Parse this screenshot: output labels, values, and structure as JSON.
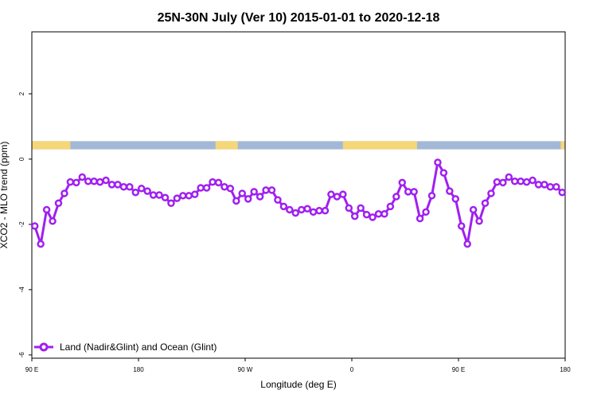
{
  "chart_data": {
    "type": "line",
    "title": "25N-30N July (Ver 10)   2015-01-01 to 2020-12-18",
    "xlabel": "Longitude (deg E)",
    "ylabel": "XCO2 - MLO trend (ppm)",
    "xlim": [
      90,
      450
    ],
    "ylim": [
      -6.1,
      3.9
    ],
    "x_ticks": [
      {
        "value": 90,
        "label": "90 E"
      },
      {
        "value": 162,
        "label": "180"
      },
      {
        "value": 234,
        "label": "90 W"
      },
      {
        "value": 306,
        "label": "0"
      },
      {
        "value": 378,
        "label": "90 E"
      },
      {
        "value": 450,
        "label": "180"
      }
    ],
    "y_ticks": [
      {
        "value": 2,
        "label": "2"
      },
      {
        "value": 0,
        "label": "0"
      },
      {
        "value": -2,
        "label": "-2"
      },
      {
        "value": -4,
        "label": "-4"
      },
      {
        "value": -6,
        "label": "-6"
      }
    ],
    "grid": false,
    "legend": {
      "position": "bottom-left"
    },
    "surface_strip": {
      "y_range": [
        0.3,
        0.55
      ],
      "ocean_color": "#a3b8d6",
      "land_color": "#f5d77a",
      "land_segments": [
        [
          90,
          116
        ],
        [
          214,
          229
        ],
        [
          300,
          350
        ],
        [
          447,
          450
        ]
      ]
    },
    "series": [
      {
        "name": "Land (Nadir&Glint) and Ocean (Glint)",
        "color": "#a020f0",
        "x": [
          92,
          96,
          100,
          104,
          108,
          112,
          116,
          120,
          124,
          128,
          132,
          136,
          140,
          144,
          148,
          152,
          156,
          160,
          164,
          168,
          172,
          176,
          180,
          184,
          188,
          192,
          196,
          200,
          204,
          208,
          212,
          216,
          220,
          224,
          228,
          232,
          236,
          240,
          244,
          248,
          252,
          256,
          260,
          264,
          268,
          272,
          276,
          280,
          284,
          288,
          292,
          296,
          300,
          304,
          308,
          312,
          316,
          320,
          324,
          328,
          332,
          336,
          340,
          344,
          348,
          352,
          356,
          360,
          364,
          368,
          372,
          376,
          380,
          384,
          388,
          392,
          396,
          400,
          404,
          408,
          412,
          416,
          420,
          424,
          428,
          432,
          436,
          440,
          444,
          448
        ],
        "y": [
          -2.05,
          -2.6,
          -1.55,
          -1.9,
          -1.35,
          -1.05,
          -0.7,
          -0.72,
          -0.55,
          -0.68,
          -0.68,
          -0.7,
          -0.65,
          -0.78,
          -0.78,
          -0.85,
          -0.85,
          -1.02,
          -0.9,
          -0.98,
          -1.1,
          -1.1,
          -1.18,
          -1.35,
          -1.2,
          -1.12,
          -1.12,
          -1.08,
          -0.88,
          -0.88,
          -0.7,
          -0.72,
          -0.85,
          -0.9,
          -1.28,
          -1.05,
          -1.22,
          -1.0,
          -1.15,
          -0.95,
          -0.95,
          -1.25,
          -1.45,
          -1.55,
          -1.65,
          -1.55,
          -1.52,
          -1.62,
          -1.58,
          -1.58,
          -1.08,
          -1.15,
          -1.08,
          -1.5,
          -1.75,
          -1.5,
          -1.7,
          -1.78,
          -1.68,
          -1.68,
          -1.45,
          -1.15,
          -0.72,
          -1.0,
          -1.0,
          -1.82,
          -1.62,
          -1.12,
          -0.1,
          -0.42,
          -0.98,
          -1.22,
          -2.05,
          -2.6,
          -1.55,
          -1.9,
          -1.35,
          -1.05,
          -0.7,
          -0.72,
          -0.55,
          -0.68,
          -0.68,
          -0.7,
          -0.65,
          -0.78,
          -0.78,
          -0.85,
          -0.85,
          -1.02
        ]
      }
    ]
  }
}
